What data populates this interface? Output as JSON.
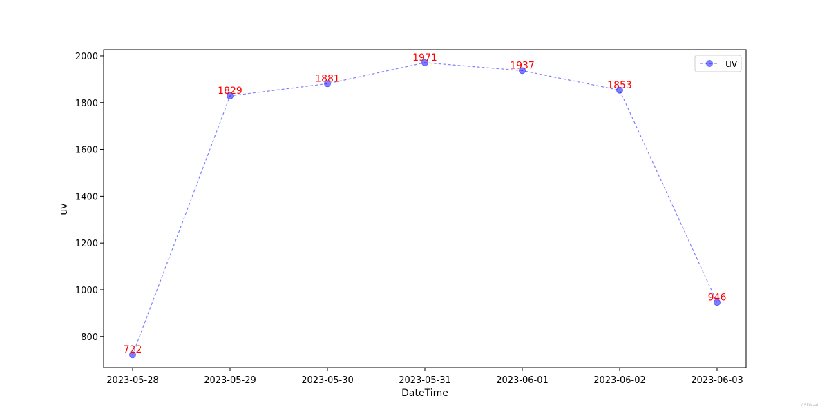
{
  "chart_data": {
    "type": "line",
    "title": "",
    "xlabel": "DateTime",
    "ylabel": "uv",
    "categories": [
      "2023-05-28",
      "2023-05-29",
      "2023-05-30",
      "2023-05-31",
      "2023-06-01",
      "2023-06-02",
      "2023-06-03"
    ],
    "series": [
      {
        "name": "uv",
        "values": [
          722,
          1829,
          1881,
          1971,
          1937,
          1853,
          946
        ],
        "color": "#0000ff",
        "line_style": "dashed",
        "marker": "circle",
        "data_labels": true,
        "data_label_color": "#ff0000"
      }
    ],
    "ylim": [
      666.55,
      2026.45
    ],
    "yticks": [
      800,
      1000,
      1200,
      1400,
      1600,
      1800,
      2000
    ],
    "grid": false,
    "legend": "upper right"
  },
  "watermark": "CSDN-ai"
}
